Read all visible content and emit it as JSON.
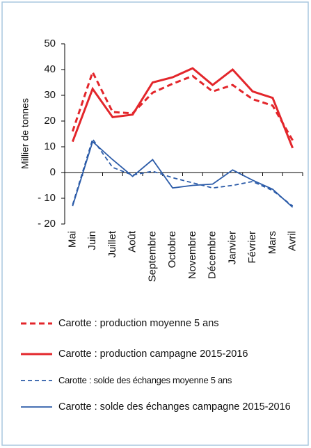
{
  "chart_data": {
    "type": "line",
    "y_label": "Millier de tonnes",
    "categories": [
      "Mai",
      "Juin",
      "Juillet",
      "Août",
      "Septembre",
      "Octobre",
      "Novembre",
      "Décembre",
      "Janvier",
      "Février",
      "Mars",
      "Avril"
    ],
    "ylim": [
      -20,
      50
    ],
    "yticks": [
      {
        "value": -20,
        "label": "- 20"
      },
      {
        "value": -10,
        "label": "- 10"
      },
      0,
      10,
      20,
      30,
      40,
      50
    ],
    "series": [
      {
        "name": "Carotte : production moyenne 5 ans",
        "color": "#e3262b",
        "style": "dashed",
        "values": [
          16,
          39,
          23.5,
          23,
          31,
          34.5,
          37.5,
          31.5,
          34,
          28.5,
          26,
          12.5
        ]
      },
      {
        "name": "Carotte : production campagne 2015-2016",
        "color": "#e3262b",
        "style": "solid",
        "values": [
          12,
          32.5,
          21.5,
          22.5,
          35,
          37,
          40.5,
          34,
          40,
          31.5,
          29,
          9.5
        ]
      },
      {
        "name": "Carotte : solde des échanges moyenne 5 ans",
        "color": "#2b5ba8",
        "style": "dashed",
        "values": [
          -12.5,
          13,
          2,
          -1,
          0.5,
          -2,
          -4,
          -6,
          -5,
          -3.5,
          -7,
          -13
        ]
      },
      {
        "name": "Carotte : solde des échanges campagne 2015-2016",
        "color": "#2b5ba8",
        "style": "solid",
        "values": [
          -13,
          12,
          5,
          -1.5,
          5,
          -6,
          -5,
          -4.5,
          1,
          -3,
          -6.5,
          -13.5
        ]
      }
    ]
  }
}
